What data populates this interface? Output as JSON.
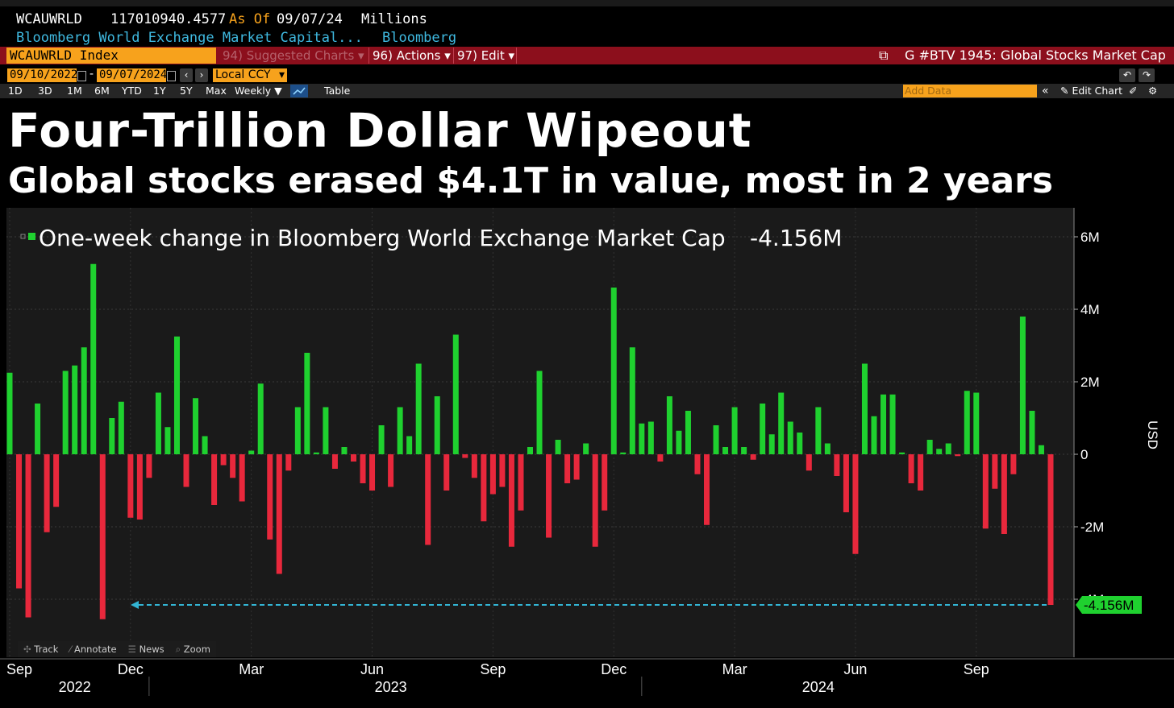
{
  "quote": {
    "ticker": "WCAUWRLD",
    "value": "117010940.4577",
    "as_of_label": "As Of",
    "as_of_date": "09/07/24",
    "units": "Millions",
    "security_name": "Bloomberg World Exchange Market Capital...",
    "source": "Bloomberg"
  },
  "toolbar": {
    "security_field": "WCAUWRLD Index",
    "suggested_charts": "94) Suggested Charts",
    "actions": "96) Actions",
    "edit": "97) Edit",
    "chart_title": "G #BTV 1945: Global Stocks Market Cap"
  },
  "dates": {
    "start": "09/10/2022",
    "dash": "-",
    "end": "09/07/2024",
    "currency": "Local CCY"
  },
  "ranges": {
    "items": [
      "1D",
      "3D",
      "1M",
      "6M",
      "YTD",
      "1Y",
      "5Y",
      "Max"
    ],
    "frequency": "Weekly",
    "table": "Table",
    "add_data_placeholder": "Add Data",
    "edit_chart": "Edit Chart"
  },
  "headline": "Four-Trillion Dollar Wipeout",
  "subheadline": "Global stocks erased $4.1T in value, most in 2 years",
  "footer_tools": [
    "Track",
    "Annotate",
    "News",
    "Zoom"
  ],
  "colors": {
    "positive": "#1fd12f",
    "negative": "#e8283c",
    "orange": "#f7a21c",
    "cyan_ref": "#33b5d4",
    "red_bar": "#8c0f1c"
  },
  "chart_data": {
    "type": "bar",
    "legend": "One-week change in Bloomberg World Exchange Market Cap",
    "legend_value": "-4.156M",
    "last_value_label": "-4.156M",
    "ylabel": "USD",
    "ylim": [
      -5,
      7
    ],
    "yticks": [
      {
        "v": 6,
        "label": "6M"
      },
      {
        "v": 4,
        "label": "4M"
      },
      {
        "v": 2,
        "label": "2M"
      },
      {
        "v": 0,
        "label": "0"
      },
      {
        "v": -2,
        "label": "-2M"
      },
      {
        "v": -4,
        "label": "-4M"
      }
    ],
    "xticks": [
      {
        "i": 0,
        "label": "Sep"
      },
      {
        "i": 13,
        "label": "Dec"
      },
      {
        "i": 26,
        "label": "Mar"
      },
      {
        "i": 39,
        "label": "Jun"
      },
      {
        "i": 52,
        "label": "Sep"
      },
      {
        "i": 65,
        "label": "Dec"
      },
      {
        "i": 78,
        "label": "Mar"
      },
      {
        "i": 91,
        "label": "Jun"
      },
      {
        "i": 104,
        "label": "Sep"
      }
    ],
    "year_labels": [
      {
        "i": 7,
        "label": "2022"
      },
      {
        "i": 41,
        "label": "2023"
      },
      {
        "i": 87,
        "label": "2024"
      }
    ],
    "year_dividers": [
      15,
      68
    ],
    "values": [
      2.25,
      -3.7,
      -4.5,
      1.4,
      -2.15,
      -1.45,
      2.3,
      2.45,
      2.95,
      5.25,
      -4.55,
      1.0,
      1.45,
      -1.75,
      -1.8,
      -0.65,
      1.7,
      0.75,
      3.25,
      -0.9,
      1.55,
      0.5,
      -1.4,
      -0.3,
      -0.65,
      -1.3,
      0.1,
      1.95,
      -2.35,
      -3.3,
      -0.45,
      1.3,
      2.8,
      0.05,
      1.3,
      -0.4,
      0.2,
      -0.2,
      -0.8,
      -1.0,
      0.8,
      -0.9,
      1.3,
      0.5,
      2.5,
      -2.5,
      1.6,
      -1.0,
      3.3,
      -0.1,
      -0.65,
      -1.85,
      -1.1,
      -0.9,
      -2.55,
      -1.55,
      0.2,
      2.3,
      -2.3,
      0.4,
      -0.8,
      -0.7,
      0.3,
      -2.55,
      -1.55,
      4.6,
      0.05,
      2.95,
      0.85,
      0.9,
      -0.2,
      1.6,
      0.65,
      1.2,
      -0.55,
      -1.95,
      0.8,
      0.2,
      1.3,
      0.2,
      -0.15,
      1.4,
      0.55,
      1.7,
      0.9,
      0.6,
      -0.45,
      1.3,
      0.3,
      -0.6,
      -1.6,
      -2.75,
      2.5,
      1.05,
      1.65,
      1.65,
      0.05,
      -0.8,
      -1.0,
      0.4,
      0.15,
      0.3,
      -0.05,
      1.75,
      1.7,
      -2.05,
      -0.95,
      -2.2,
      -0.55,
      3.8,
      1.2,
      0.25,
      -4.156
    ],
    "grid": true,
    "legend_position": "top-left"
  }
}
